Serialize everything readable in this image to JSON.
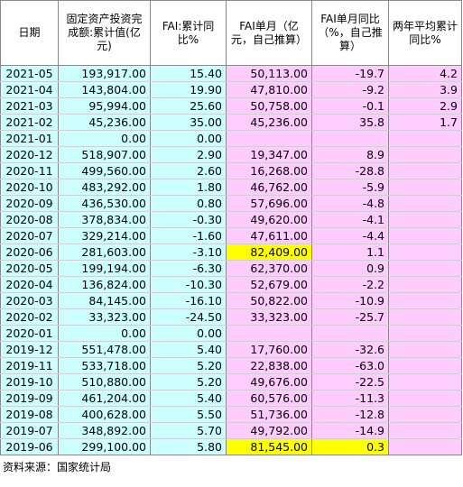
{
  "table": {
    "header": [
      "日期",
      "固定资产投资完成额:累计值(亿元)",
      "FAI:累计同比%",
      "FAI单月（亿元，自己推算）",
      "FAI单月同比（%，自己推算）",
      "两年平均累计同比%"
    ],
    "rows": [
      [
        "2021-05",
        "193,917.00",
        "15.40",
        "50,113.00",
        "-19.7",
        "4.2"
      ],
      [
        "2021-04",
        "143,804.00",
        "19.90",
        "47,810.00",
        "-9.2",
        "3.9"
      ],
      [
        "2021-03",
        "95,994.00",
        "25.60",
        "50,758.00",
        "-0.1",
        "2.9"
      ],
      [
        "2021-02",
        "45,236.00",
        "35.00",
        "45,236.00",
        "35.8",
        "1.7"
      ],
      [
        "2021-01",
        "0.00",
        "0.00",
        null,
        null,
        null
      ],
      [
        "2020-12",
        "518,907.00",
        "2.90",
        "19,347.00",
        "8.9",
        null
      ],
      [
        "2020-11",
        "499,560.00",
        "2.60",
        "16,268.00",
        "-28.8",
        null
      ],
      [
        "2020-10",
        "483,292.00",
        "1.80",
        "46,762.00",
        "-5.9",
        null
      ],
      [
        "2020-09",
        "436,530.00",
        "0.80",
        "57,696.00",
        "-4.8",
        null
      ],
      [
        "2020-08",
        "378,834.00",
        "-0.30",
        "49,620.00",
        "-4.1",
        null
      ],
      [
        "2020-07",
        "329,214.00",
        "-1.60",
        "47,611.00",
        "-4.4",
        null
      ],
      [
        "2020-06",
        "281,603.00",
        "-3.10",
        "82,409.00",
        "1.1",
        null
      ],
      [
        "2020-05",
        "199,194.00",
        "-6.30",
        "62,370.00",
        "0.9",
        null
      ],
      [
        "2020-04",
        "136,824.00",
        "-10.30",
        "52,679.00",
        "-2.2",
        null
      ],
      [
        "2020-03",
        "84,145.00",
        "-16.10",
        "50,822.00",
        "-10.9",
        null
      ],
      [
        "2020-02",
        "33,323.00",
        "-24.50",
        "33,323.00",
        "-25.7",
        null
      ],
      [
        "2020-01",
        "0.00",
        "0.00",
        null,
        null,
        null
      ],
      [
        "2019-12",
        "551,478.00",
        "5.40",
        "17,760.00",
        "-32.6",
        null
      ],
      [
        "2019-11",
        "533,718.00",
        "5.20",
        "22,838.00",
        "-63.0",
        null
      ],
      [
        "2019-10",
        "510,880.00",
        "5.20",
        "49,676.00",
        "-22.5",
        null
      ],
      [
        "2019-09",
        "461,204.00",
        "5.40",
        "60,576.00",
        "-11.3",
        null
      ],
      [
        "2019-08",
        "400,628.00",
        "5.50",
        "51,736.00",
        "-12.8",
        null
      ],
      [
        "2019-07",
        "348,892.00",
        "5.70",
        "49,792.00",
        "-14.9",
        null
      ],
      [
        "2019-06",
        "299,100.00",
        "5.80",
        "81,545.00",
        "0.3",
        null
      ]
    ]
  },
  "source": "资料来源：国家统计局"
}
